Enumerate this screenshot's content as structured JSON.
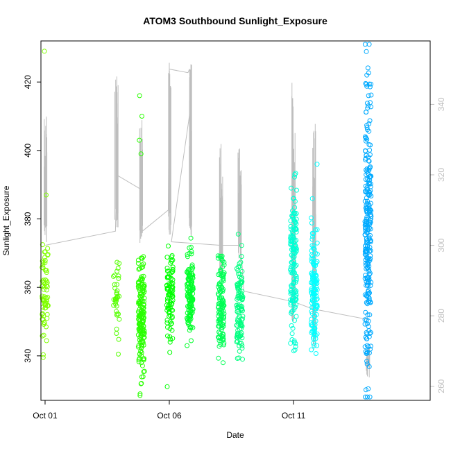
{
  "chart_data": {
    "type": "scatter",
    "title": "ATOM3 Southbound Sunlight_Exposure",
    "xlabel": "Date",
    "ylabel": "Sunlight_Exposure",
    "xlim": [
      "2014-09-30T20:00",
      "2014-10-16T12:00"
    ],
    "ylim": [
      327,
      432
    ],
    "x_ticks": [
      {
        "date": "2014-10-01T00:00",
        "label": "Oct 01"
      },
      {
        "date": "2014-10-06T00:00",
        "label": "Oct 06"
      },
      {
        "date": "2014-10-11T00:00",
        "label": "Oct 11"
      }
    ],
    "y_ticks": [
      340,
      360,
      380,
      400,
      420
    ],
    "y2_ticks": [
      260,
      280,
      300,
      320,
      340
    ],
    "y2_lim": [
      256,
      358
    ],
    "y2_color": "#bebebe",
    "clusters": [
      {
        "date": "2014-10-01T00:05",
        "center": 358,
        "spread": 7,
        "n": 70,
        "color": "#80ff00",
        "extra": [
          429,
          387,
          339.5
        ]
      },
      {
        "date": "2014-10-03T21:00",
        "center": 357,
        "spread": 5,
        "n": 35,
        "color": "#55ff00",
        "extra": [
          340.5
        ]
      },
      {
        "date": "2014-10-04T21:00",
        "center": 352,
        "spread": 8,
        "n": 180,
        "color": "#2aff00",
        "extra": [
          416,
          410,
          403,
          399,
          335.5
        ]
      },
      {
        "date": "2014-10-06T00:30",
        "center": 358,
        "spread": 6,
        "n": 90,
        "color": "#00ff00",
        "extra": [
          331,
          344,
          341
        ]
      },
      {
        "date": "2014-10-06T20:00",
        "center": 357,
        "spread": 6,
        "n": 130,
        "color": "#00ff2a",
        "extra": [
          369,
          343
        ]
      },
      {
        "date": "2014-10-08T02:00",
        "center": 355,
        "spread": 7,
        "n": 130,
        "color": "#00ff55",
        "extra": [
          369,
          338
        ]
      },
      {
        "date": "2014-10-08T20:00",
        "center": 355,
        "spread": 7,
        "n": 110,
        "color": "#00ff80",
        "extra": [
          366,
          343
        ]
      },
      {
        "date": "2014-10-11T00:00",
        "center": 368,
        "spread": 12,
        "n": 150,
        "color": "#00ffd4",
        "extra": [
          393,
          389,
          353
        ]
      },
      {
        "date": "2014-10-11T20:00",
        "center": 360,
        "spread": 10,
        "n": 130,
        "color": "#00ffff",
        "extra": [
          396,
          345,
          343
        ]
      },
      {
        "date": "2014-10-14T00:00",
        "center": 378,
        "spread": 20,
        "n": 260,
        "color": "#00aaff",
        "extra": [
          416,
          352
        ]
      }
    ],
    "secondary_line": {
      "color": "#bebebe",
      "spikes": [
        {
          "date": "2014-10-01T00:05",
          "from": 300,
          "to": 340
        },
        {
          "date": "2014-10-03T21:00",
          "from": 305,
          "to": 350
        },
        {
          "date": "2014-10-04T21:00",
          "from": 300,
          "to": 338
        },
        {
          "date": "2014-10-06T00:30",
          "from": 302,
          "to": 352
        },
        {
          "date": "2014-10-06T20:00",
          "from": 302,
          "to": 352
        },
        {
          "date": "2014-10-08T02:00",
          "from": 290,
          "to": 330
        },
        {
          "date": "2014-10-08T20:00",
          "from": 295,
          "to": 328
        },
        {
          "date": "2014-10-11T00:00",
          "from": 278,
          "to": 347
        },
        {
          "date": "2014-10-11T20:00",
          "from": 270,
          "to": 335
        },
        {
          "date": "2014-10-14T00:00",
          "from": 262,
          "to": 272
        }
      ],
      "path": [
        [
          "2014-10-01T00:10",
          300
        ],
        [
          "2014-10-03T20:00",
          304
        ],
        [
          "2014-10-03T21:00",
          320
        ],
        [
          "2014-10-04T20:00",
          316
        ],
        [
          "2014-10-04T22:00",
          304
        ],
        [
          "2014-10-05T23:00",
          310
        ],
        [
          "2014-10-06T00:00",
          350
        ],
        [
          "2014-10-06T18:00",
          349
        ],
        [
          "2014-10-06T19:30",
          350
        ],
        [
          "2014-10-06T21:00",
          340
        ],
        [
          "2014-10-06T02:00",
          301
        ],
        [
          "2014-10-08T01:00",
          300
        ],
        [
          "2014-10-08T21:00",
          300
        ],
        [
          "2014-10-09T00:00",
          287
        ],
        [
          "2014-10-11T00:00",
          284
        ],
        [
          "2014-10-11T18:00",
          282
        ],
        [
          "2014-10-13T23:00",
          279
        ],
        [
          "2014-10-14T00:00",
          280
        ]
      ]
    }
  }
}
